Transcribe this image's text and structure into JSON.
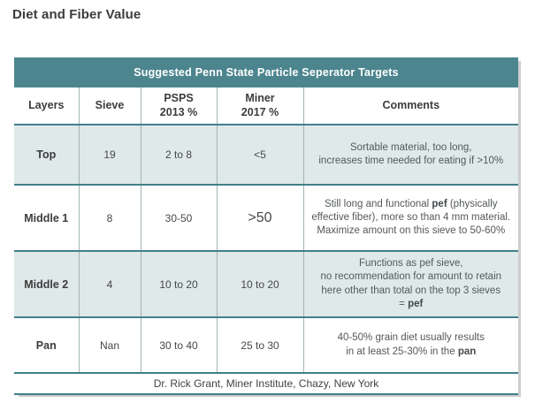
{
  "page_title": "Diet and Fiber Value",
  "colors": {
    "teal": "#4c858e",
    "teal-border": "#41808a",
    "row-alt": "#dfe9e9",
    "v-sep": "#a3b4b5",
    "ink": "#3c3c3c",
    "comment-ink": "#54585a"
  },
  "table": {
    "title": "Suggested Penn State Particle Seperator Targets",
    "columns": {
      "layers": "Layers",
      "sieve": "Sieve",
      "psps_line1": "PSPS",
      "psps_line2": "2013 %",
      "miner_line1": "Miner",
      "miner_line2": "2017 %",
      "comments": "Comments"
    },
    "rows": [
      {
        "layer": "Top",
        "sieve": "19",
        "psps_2013": "2 to 8",
        "miner_2017": "<5",
        "comment_line1": "Sortable material, too long,",
        "comment_line2": "increases time needed for eating if >10%"
      },
      {
        "layer": "Middle 1",
        "sieve": "8",
        "psps_2013": "30-50",
        "miner_2017": ">50",
        "comment_line1_pre": "Still long and functional ",
        "comment_line1_bold": "pef",
        "comment_line1_post": " (physically",
        "comment_line2": "effective fiber), more so than 4 mm material.",
        "comment_line3": "Maximize amount on this sieve to 50-60%"
      },
      {
        "layer": "Middle 2",
        "sieve": "4",
        "psps_2013": "10 to 20",
        "miner_2017": "10 to 20",
        "comment_line1": "Functions as pef sieve,",
        "comment_line2": "no recommendation for amount to retain",
        "comment_line3": "here other than total on the top 3 sieves",
        "comment_line4_pre": "= ",
        "comment_line4_bold": "pef"
      },
      {
        "layer": "Pan",
        "sieve": "Nan",
        "psps_2013": "30 to 40",
        "miner_2017": "25 to 30",
        "comment_line1": "40-50% grain diet usually results",
        "comment_line2_pre": "in at least 25-30% in the ",
        "comment_line2_bold": "pan"
      }
    ],
    "footer": "Dr. Rick Grant, Miner Institute, Chazy, New York"
  }
}
